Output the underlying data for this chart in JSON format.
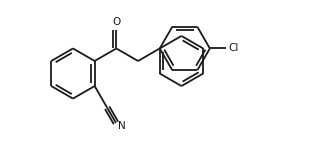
{
  "background_color": "#ffffff",
  "line_color": "#1a1a1a",
  "line_width": 1.3,
  "font_size": 7.5,
  "label_O": "O",
  "label_N": "N",
  "label_Cl": "Cl",
  "figsize": [
    3.26,
    1.58
  ],
  "dpi": 100,
  "xlim": [
    -0.1,
    3.5
  ],
  "ylim": [
    -0.55,
    1.45
  ]
}
